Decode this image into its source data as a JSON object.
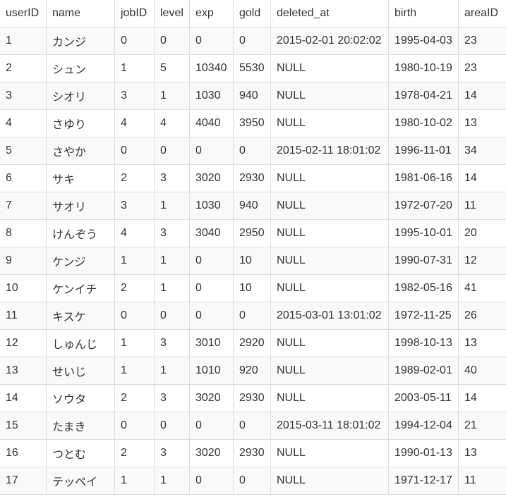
{
  "table": {
    "columns": [
      "userID",
      "name",
      "jobID",
      "level",
      "exp",
      "gold",
      "deleted_at",
      "birth",
      "areaID"
    ],
    "rows": [
      [
        "1",
        "カンジ",
        "0",
        "0",
        "0",
        "0",
        "2015-02-01 20:02:02",
        "1995-04-03",
        "23"
      ],
      [
        "2",
        "シュン",
        "1",
        "5",
        "10340",
        "5530",
        "NULL",
        "1980-10-19",
        "23"
      ],
      [
        "3",
        "シオリ",
        "3",
        "1",
        "1030",
        "940",
        "NULL",
        "1978-04-21",
        "14"
      ],
      [
        "4",
        "さゆり",
        "4",
        "4",
        "4040",
        "3950",
        "NULL",
        "1980-10-02",
        "13"
      ],
      [
        "5",
        "さやか",
        "0",
        "0",
        "0",
        "0",
        "2015-02-11 18:01:02",
        "1996-11-01",
        "34"
      ],
      [
        "6",
        "サキ",
        "2",
        "3",
        "3020",
        "2930",
        "NULL",
        "1981-06-16",
        "14"
      ],
      [
        "7",
        "サオリ",
        "3",
        "1",
        "1030",
        "940",
        "NULL",
        "1972-07-20",
        "11"
      ],
      [
        "8",
        "けんぞう",
        "4",
        "3",
        "3040",
        "2950",
        "NULL",
        "1995-10-01",
        "20"
      ],
      [
        "9",
        "ケンジ",
        "1",
        "1",
        "0",
        "10",
        "NULL",
        "1990-07-31",
        "12"
      ],
      [
        "10",
        "ケンイチ",
        "2",
        "1",
        "0",
        "10",
        "NULL",
        "1982-05-16",
        "41"
      ],
      [
        "11",
        "キスケ",
        "0",
        "0",
        "0",
        "0",
        "2015-03-01 13:01:02",
        "1972-11-25",
        "26"
      ],
      [
        "12",
        "しゅんじ",
        "1",
        "3",
        "3010",
        "2920",
        "NULL",
        "1998-10-13",
        "13"
      ],
      [
        "13",
        "せいじ",
        "1",
        "1",
        "1010",
        "920",
        "NULL",
        "1989-02-01",
        "40"
      ],
      [
        "14",
        "ソウタ",
        "2",
        "3",
        "3020",
        "2930",
        "NULL",
        "2003-05-11",
        "14"
      ],
      [
        "15",
        "たまき",
        "0",
        "0",
        "0",
        "0",
        "2015-03-11 18:01:02",
        "1994-12-04",
        "21"
      ],
      [
        "16",
        "つとむ",
        "2",
        "3",
        "3020",
        "2930",
        "NULL",
        "1990-01-13",
        "13"
      ],
      [
        "17",
        "テッペイ",
        "1",
        "1",
        "0",
        "0",
        "NULL",
        "1971-12-17",
        "11"
      ]
    ]
  },
  "colors": {
    "border": "#dddddd",
    "stripe": "#f9f9f9",
    "text": "#333333",
    "background": "#ffffff"
  }
}
